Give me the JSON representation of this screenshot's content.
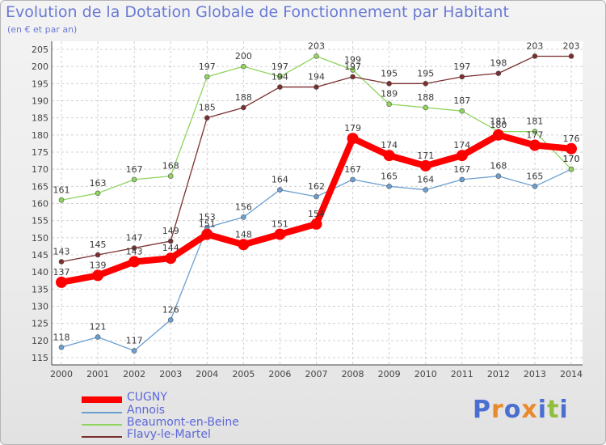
{
  "header": {
    "title": "Evolution de la Dotation Globale de Fonctionnement par Habitant",
    "subtitle": "(en € et par an)"
  },
  "chart_data": {
    "type": "line",
    "x": [
      "2000",
      "2001",
      "2002",
      "2003",
      "2004",
      "2005",
      "2006",
      "2007",
      "2008",
      "2009",
      "2010",
      "2011",
      "2012",
      "2013",
      "2014"
    ],
    "ylim": [
      115,
      205
    ],
    "y_ticks": [
      115,
      120,
      125,
      130,
      135,
      140,
      145,
      150,
      155,
      160,
      165,
      170,
      175,
      180,
      185,
      190,
      195,
      200,
      205
    ],
    "grid": true,
    "legend_position": "bottom-left",
    "series": [
      {
        "name": "CUGNY",
        "color": "#ff0000",
        "values": [
          137,
          139,
          143,
          144,
          151,
          148,
          151,
          154,
          179,
          174,
          171,
          174,
          180,
          177,
          176
        ]
      },
      {
        "name": "Annois",
        "color": "#6a9fd0",
        "values": [
          118,
          121,
          117,
          126,
          153,
          156,
          164,
          162,
          167,
          165,
          164,
          167,
          168,
          165,
          170
        ]
      },
      {
        "name": "Beaumont-en-Beine",
        "color": "#8fd45e",
        "values": [
          161,
          163,
          167,
          168,
          197,
          200,
          197,
          203,
          199,
          189,
          188,
          187,
          181,
          181,
          170
        ]
      },
      {
        "name": "Flavy-le-Martel",
        "color": "#7a2e2e",
        "values": [
          143,
          145,
          147,
          149,
          185,
          188,
          194,
          194,
          197,
          195,
          195,
          197,
          198,
          203,
          203
        ]
      }
    ]
  },
  "logo": {
    "text": "Proxiti",
    "colors": [
      "#4a6fd0",
      "#e8892b",
      "#4a6fd0",
      "#e8892b",
      "#4a6fd0",
      "#8fbf3c",
      "#4a6fd0"
    ]
  }
}
